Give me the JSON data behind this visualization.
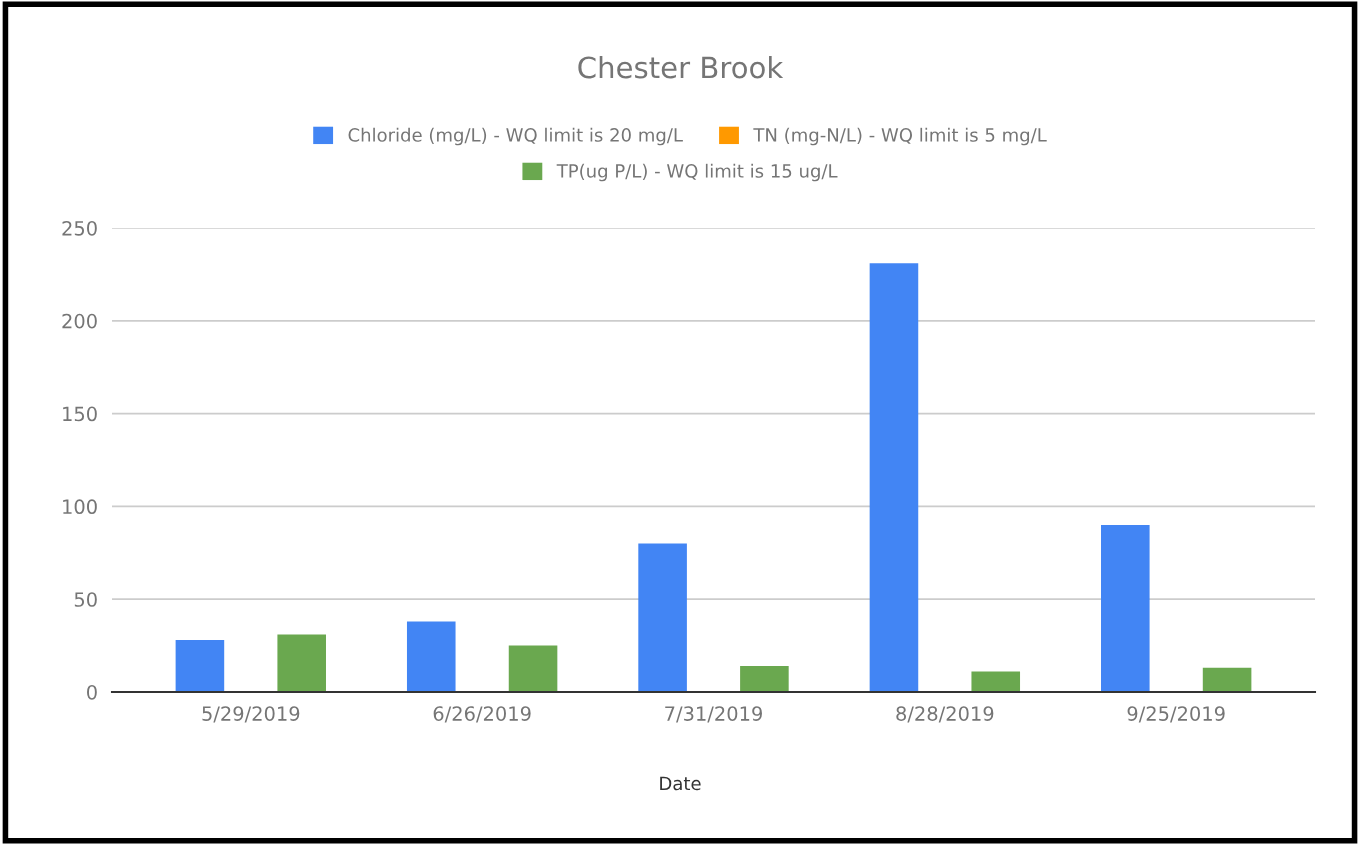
{
  "chart_data": {
    "type": "bar",
    "title": "Chester Brook",
    "xlabel": "Date",
    "categories": [
      "5/29/2019",
      "6/26/2019",
      "7/31/2019",
      "8/28/2019",
      "9/25/2019"
    ],
    "series": [
      {
        "name": "Chloride (mg/L) - WQ limit is 20 mg/L",
        "color": "#4285f4",
        "values": [
          28,
          38,
          80,
          231,
          90
        ]
      },
      {
        "name": "TN (mg-N/L) - WQ limit is 5 mg/L",
        "color": "#ff9900",
        "values": [
          null,
          null,
          null,
          null,
          null
        ]
      },
      {
        "name": "TP(ug P/L) - WQ limit is 15 ug/L",
        "color": "#6aa84f",
        "values": [
          31,
          25,
          14,
          11,
          13
        ]
      }
    ],
    "ylim": [
      0,
      250
    ],
    "yticks": [
      0,
      50,
      100,
      150,
      200,
      250
    ],
    "grid": "y",
    "legend": "top"
  }
}
